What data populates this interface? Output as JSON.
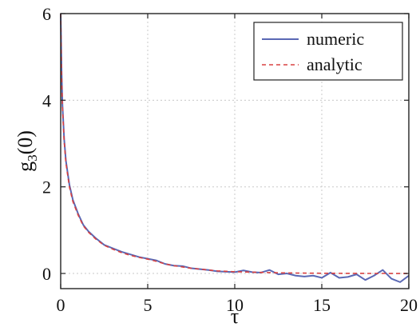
{
  "chart_data": {
    "type": "line",
    "xlabel": "τ",
    "ylabel": "g3(0)",
    "ylabel_main": "g",
    "ylabel_sub": "3",
    "ylabel_tail": "(0)",
    "xlim": [
      0,
      20
    ],
    "ylim": [
      -0.35,
      6
    ],
    "xticks": [
      0,
      5,
      10,
      15,
      20
    ],
    "yticks": [
      0,
      2,
      4,
      6
    ],
    "x_tick_labels": [
      "0",
      "5",
      "10",
      "15",
      "20"
    ],
    "y_tick_labels": [
      "0",
      "2",
      "4",
      "6"
    ],
    "grid": true,
    "legend_position": "top-right",
    "series": [
      {
        "name": "numeric",
        "color": "#5a68b4",
        "style": "solid",
        "x": [
          0,
          0.05,
          0.1,
          0.2,
          0.3,
          0.5,
          0.7,
          1.0,
          1.3,
          1.6,
          2.0,
          2.5,
          3.0,
          3.5,
          4.0,
          4.5,
          5.0,
          5.5,
          6.0,
          6.5,
          7.0,
          7.5,
          8.0,
          8.5,
          9.0,
          9.5,
          10.0,
          10.5,
          11.0,
          11.5,
          12.0,
          12.5,
          13.0,
          13.5,
          14.0,
          14.5,
          15.0,
          15.5,
          16.0,
          16.5,
          17.0,
          17.5,
          18.0,
          18.5,
          19.0,
          19.5,
          20.0
        ],
        "y": [
          6.0,
          4.7,
          3.9,
          3.1,
          2.6,
          2.05,
          1.7,
          1.38,
          1.12,
          0.97,
          0.82,
          0.66,
          0.58,
          0.5,
          0.44,
          0.38,
          0.34,
          0.3,
          0.22,
          0.18,
          0.17,
          0.12,
          0.1,
          0.08,
          0.05,
          0.04,
          0.03,
          0.07,
          0.03,
          0.02,
          0.08,
          -0.02,
          0.0,
          -0.05,
          -0.07,
          -0.05,
          -0.1,
          0.02,
          -0.1,
          -0.08,
          -0.02,
          -0.15,
          -0.05,
          0.08,
          -0.12,
          -0.2,
          -0.05
        ]
      },
      {
        "name": "analytic",
        "color": "#d84040",
        "style": "dashed",
        "x": [
          0,
          0.05,
          0.1,
          0.2,
          0.3,
          0.5,
          0.7,
          1.0,
          1.3,
          1.6,
          2.0,
          2.5,
          3.0,
          3.5,
          4.0,
          4.5,
          5.0,
          5.5,
          6.0,
          6.5,
          7.0,
          7.5,
          8.0,
          8.5,
          9.0,
          9.5,
          10.0,
          10.5,
          11.0,
          11.5,
          12.0,
          12.5,
          13.0,
          13.5,
          14.0,
          14.5,
          15.0,
          15.5,
          16.0,
          16.5,
          17.0,
          17.5,
          18.0,
          18.5,
          19.0,
          19.5,
          20.0
        ],
        "y": [
          6.0,
          4.6,
          3.85,
          3.05,
          2.55,
          2.0,
          1.66,
          1.35,
          1.1,
          0.95,
          0.8,
          0.65,
          0.56,
          0.48,
          0.42,
          0.37,
          0.33,
          0.28,
          0.22,
          0.18,
          0.15,
          0.12,
          0.1,
          0.08,
          0.06,
          0.05,
          0.04,
          0.035,
          0.03,
          0.025,
          0.02,
          0.015,
          0.012,
          0.01,
          0.008,
          0.006,
          0.005,
          0.004,
          0.003,
          0.002,
          0.002,
          0.001,
          0.001,
          0.001,
          0.0,
          0.0,
          0.0
        ]
      }
    ]
  }
}
